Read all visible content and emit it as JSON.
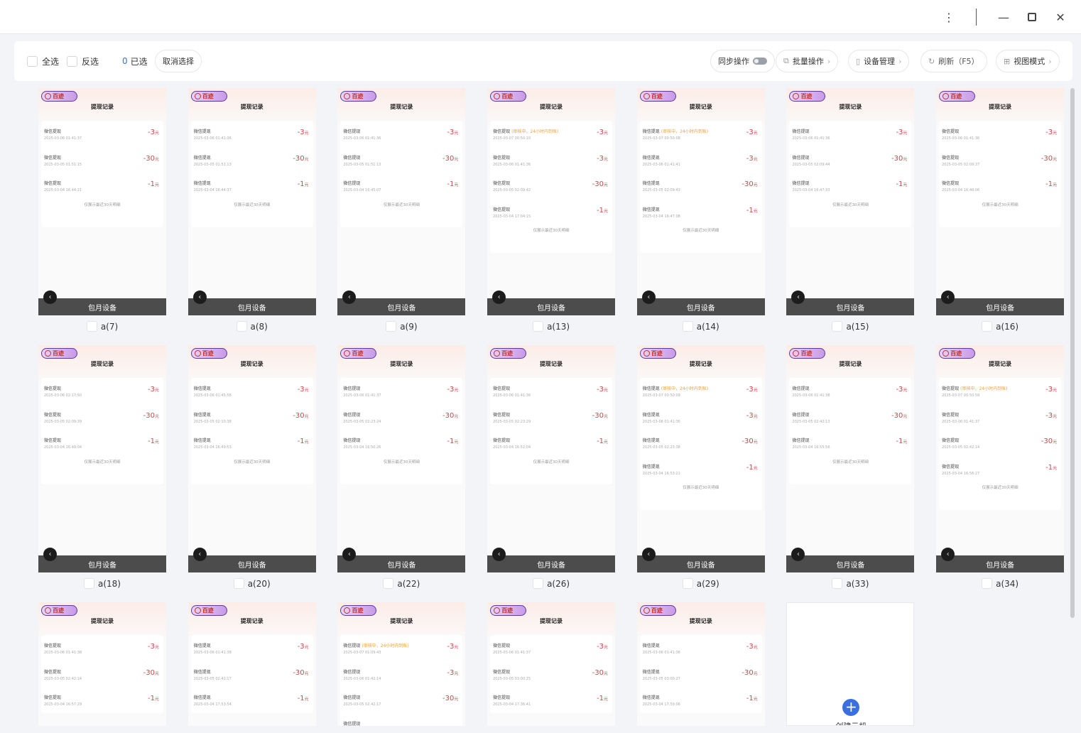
{
  "window": {
    "controls": [
      "more-vertical-icon",
      "minimize-icon",
      "maximize-icon",
      "close-icon"
    ]
  },
  "toolbar": {
    "select_all": "全选",
    "invert": "反选",
    "selected_count": "0",
    "selected_label": "已选",
    "clear_selection": "取消选择",
    "sync": "同步操作",
    "batch": "批量操作",
    "device_mgmt": "设备管理",
    "refresh": "刷新（F5）",
    "view_mode": "视图模式"
  },
  "screen_common": {
    "logo": "百迹",
    "title": "提现记录",
    "record_name": "微信提现",
    "pending_note": "(审核中，24小时内到账)",
    "currency": "元",
    "footer_note": "仅展示最近30天明细",
    "bar_label": "包月设备"
  },
  "colors": {
    "amount": "#c8474a",
    "pending": "#e8a23c",
    "accent": "#3a6fe0",
    "bar": "#4c4c4c"
  },
  "devices": [
    {
      "label": "a(7)",
      "records": [
        {
          "date": "2025-03-06  01:41:37",
          "amount": "-3"
        },
        {
          "date": "2025-03-05  01:51:15",
          "amount": "-30"
        },
        {
          "date": "2025-03-04  16:44:21",
          "amount": "-1"
        }
      ]
    },
    {
      "label": "a(8)",
      "records": [
        {
          "date": "2025-03-06  01:41:36",
          "amount": "-3"
        },
        {
          "date": "2025-03-05  01:51:13",
          "amount": "-30"
        },
        {
          "date": "2025-03-04  16:44:37",
          "amount": "-1"
        }
      ]
    },
    {
      "label": "a(9)",
      "records": [
        {
          "date": "2025-03-06  01:41:36",
          "amount": "-3"
        },
        {
          "date": "2025-03-05  01:51:13",
          "amount": "-30"
        },
        {
          "date": "2025-03-04  16:45:07",
          "amount": "-1"
        }
      ]
    },
    {
      "label": "a(13)",
      "records": [
        {
          "date": "2025-03-07  00:50:10",
          "amount": "-3",
          "pending": true
        },
        {
          "date": "2025-03-06  01:41:36",
          "amount": "-3"
        },
        {
          "date": "2025-03-05  02:09:42",
          "amount": "-30"
        },
        {
          "date": "2025-03-04  17:04:15",
          "amount": "-1"
        }
      ]
    },
    {
      "label": "a(14)",
      "records": [
        {
          "date": "2025-03-07  00:50:08",
          "amount": "-3",
          "pending": true
        },
        {
          "date": "2025-03-06  01:41:41",
          "amount": "-3"
        },
        {
          "date": "2025-03-05  02:09:43",
          "amount": "-30"
        },
        {
          "date": "2025-03-04  16:47:08",
          "amount": "-1"
        }
      ]
    },
    {
      "label": "a(15)",
      "records": [
        {
          "date": "2025-03-06  01:41:36",
          "amount": "-3"
        },
        {
          "date": "2025-03-05  02:09:44",
          "amount": "-30"
        },
        {
          "date": "2025-03-04  16:47:33",
          "amount": "-1"
        }
      ]
    },
    {
      "label": "a(16)",
      "records": [
        {
          "date": "2025-03-06  01:41:36",
          "amount": "-3"
        },
        {
          "date": "2025-03-05  02:09:37",
          "amount": "-30"
        },
        {
          "date": "2025-03-04  16:48:06",
          "amount": "-1"
        }
      ]
    },
    {
      "label": "a(18)",
      "records": [
        {
          "date": "2025-03-06  02:17:50",
          "amount": "-3"
        },
        {
          "date": "2025-03-05  02:09:39",
          "amount": "-30"
        },
        {
          "date": "2025-03-04  16:49:04",
          "amount": "-1"
        }
      ]
    },
    {
      "label": "a(20)",
      "records": [
        {
          "date": "2025-03-06  01:45:58",
          "amount": "-3"
        },
        {
          "date": "2025-03-05  02:10:38",
          "amount": "-30"
        },
        {
          "date": "2025-03-04  16:49:53",
          "amount": "-1"
        }
      ]
    },
    {
      "label": "a(22)",
      "records": [
        {
          "date": "2025-03-06  01:41:37",
          "amount": "-3"
        },
        {
          "date": "2025-03-05  02:23:24",
          "amount": "-30"
        },
        {
          "date": "2025-03-04  16:50:26",
          "amount": "-1"
        }
      ]
    },
    {
      "label": "a(26)",
      "records": [
        {
          "date": "2025-03-06  01:41:36",
          "amount": "-3"
        },
        {
          "date": "2025-03-05  02:23:29",
          "amount": "-30"
        },
        {
          "date": "2025-03-04  16:52:04",
          "amount": "-1"
        }
      ]
    },
    {
      "label": "a(29)",
      "records": [
        {
          "date": "2025-03-07  00:50:09",
          "amount": "-3",
          "pending": true
        },
        {
          "date": "2025-03-06  01:41:36",
          "amount": "-3"
        },
        {
          "date": "2025-03-05  02:23:38",
          "amount": "-30"
        },
        {
          "date": "2025-03-04  16:53:21",
          "amount": "-1"
        }
      ]
    },
    {
      "label": "a(33)",
      "records": [
        {
          "date": "2025-03-06  01:41:38",
          "amount": "-3"
        },
        {
          "date": "2025-03-05  02:42:13",
          "amount": "-30"
        },
        {
          "date": "2025-03-04  16:55:56",
          "amount": "-1"
        }
      ]
    },
    {
      "label": "a(34)",
      "records": [
        {
          "date": "2025-03-07  00:50:59",
          "amount": "-3",
          "pending": true
        },
        {
          "date": "2025-03-06  01:41:37",
          "amount": "-3"
        },
        {
          "date": "2025-03-05  02:42:14",
          "amount": "-30"
        },
        {
          "date": "2025-03-04  16:56:27",
          "amount": "-1"
        }
      ]
    },
    {
      "records": [
        {
          "date": "2025-03-06  01:41:38",
          "amount": "-3"
        },
        {
          "date": "2025-03-05  02:42:14",
          "amount": "-30"
        },
        {
          "date": "2025-03-04  16:57:29",
          "amount": "-1"
        }
      ]
    },
    {
      "records": [
        {
          "date": "2025-03-06  01:41:38",
          "amount": "-3"
        },
        {
          "date": "2025-03-05  02:42:17",
          "amount": "-30"
        },
        {
          "date": "2025-03-04  17:53:54",
          "amount": "-1"
        }
      ]
    },
    {
      "records": [
        {
          "date": "2025-03-07  01:09:43",
          "amount": "-3",
          "pending": true
        },
        {
          "date": "2025-03-06  01:42:14",
          "amount": "-3"
        },
        {
          "date": "2025-03-05  02:42:17",
          "amount": "-30"
        },
        {}
      ]
    },
    {
      "records": [
        {
          "date": "2025-03-06  01:41:37",
          "amount": "-3"
        },
        {
          "date": "2025-03-05  03:00:25",
          "amount": "-30"
        },
        {
          "date": "2025-03-04  17:36:41",
          "amount": "-1"
        }
      ]
    },
    {
      "records": [
        {
          "date": "2025-03-06  01:41:36",
          "amount": "-3"
        },
        {
          "date": "2025-03-05  03:00:27",
          "amount": "-30"
        },
        {
          "date": "2025-03-04  17:59:06",
          "amount": "-1"
        }
      ]
    }
  ],
  "create_card": {
    "label": "创建云机"
  }
}
